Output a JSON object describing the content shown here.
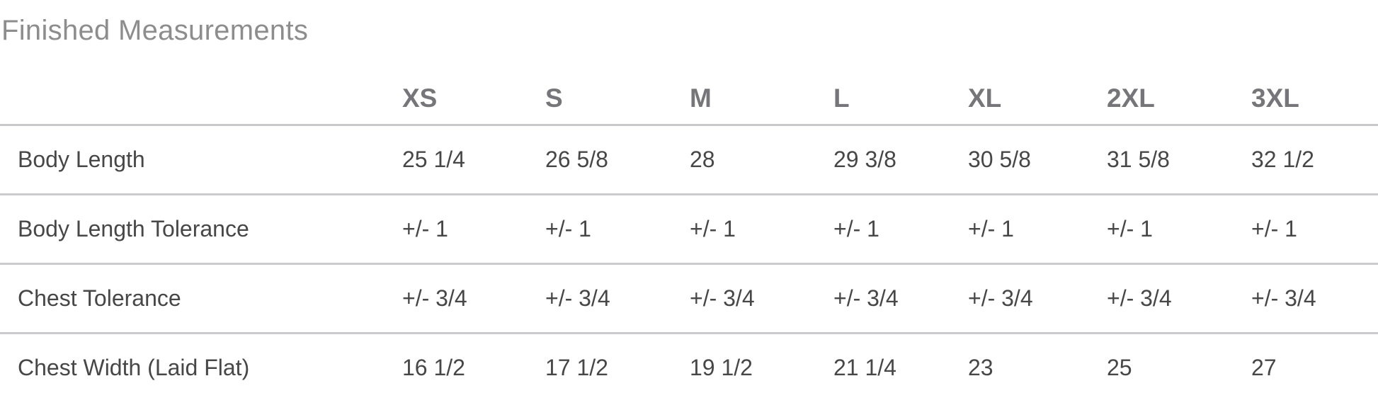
{
  "chart_data": {
    "type": "table",
    "title": "Finished Measurements",
    "columns": [
      "XS",
      "S",
      "M",
      "L",
      "XL",
      "2XL",
      "3XL"
    ],
    "rows": [
      {
        "label": "Body Length",
        "values": [
          "25 1/4",
          "26 5/8",
          "28",
          "29 3/8",
          "30 5/8",
          "31 5/8",
          "32 1/2"
        ]
      },
      {
        "label": "Body Length Tolerance",
        "values": [
          "+/- 1",
          "+/- 1",
          "+/- 1",
          "+/- 1",
          "+/- 1",
          "+/- 1",
          "+/- 1"
        ]
      },
      {
        "label": "Chest Tolerance",
        "values": [
          "+/- 3/4",
          "+/- 3/4",
          "+/- 3/4",
          "+/- 3/4",
          "+/- 3/4",
          "+/- 3/4",
          "+/- 3/4"
        ]
      },
      {
        "label": "Chest Width (Laid Flat)",
        "values": [
          "16 1/2",
          "17 1/2",
          "19 1/2",
          "21 1/4",
          "23",
          "25",
          "27"
        ]
      }
    ],
    "layout": {
      "grid": "horizontal-dividers-only",
      "legend": "none"
    }
  },
  "colors": {
    "title_text": "#8d8d8d",
    "header_text": "#76767a",
    "body_text": "#474747",
    "divider": "#c8c8ca",
    "background": "#ffffff"
  }
}
